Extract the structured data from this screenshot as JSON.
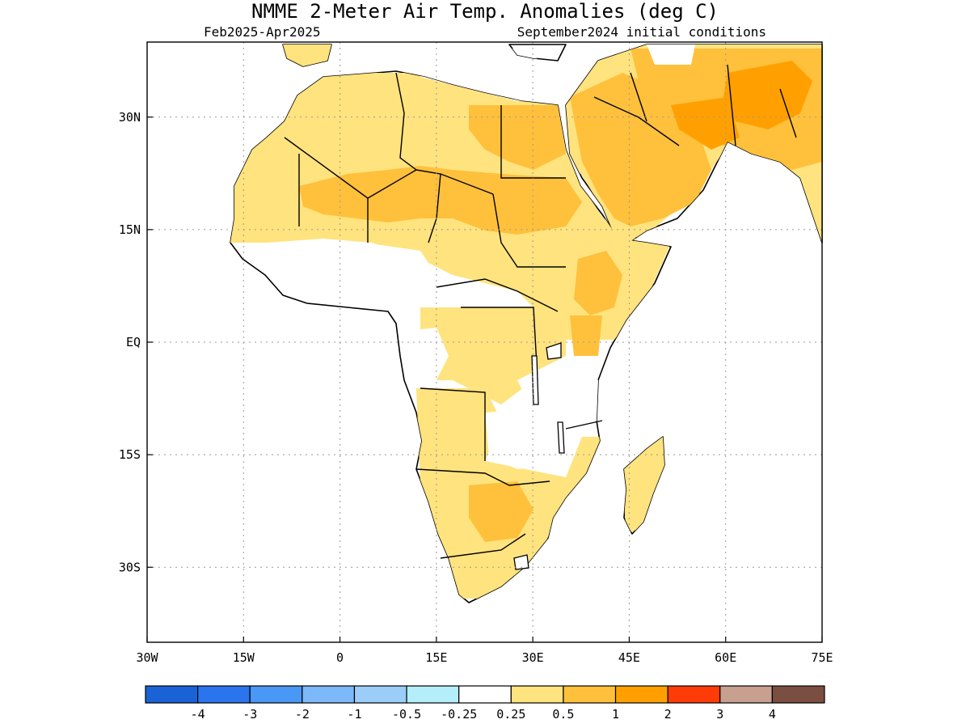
{
  "title": "NMME 2-Meter Air Temp. Anomalies (deg C)",
  "subtitle_left": "Feb2025-Apr2025",
  "subtitle_right": "September2024 initial conditions",
  "map": {
    "lon_range": [
      -30,
      75
    ],
    "lat_range": [
      -40,
      40
    ],
    "x_ticks": [
      {
        "lon": -30,
        "label": "30W"
      },
      {
        "lon": -15,
        "label": "15W"
      },
      {
        "lon": 0,
        "label": "0"
      },
      {
        "lon": 15,
        "label": "15E"
      },
      {
        "lon": 30,
        "label": "30E"
      },
      {
        "lon": 45,
        "label": "45E"
      },
      {
        "lon": 60,
        "label": "60E"
      },
      {
        "lon": 75,
        "label": "75E"
      }
    ],
    "y_ticks": [
      {
        "lat": 30,
        "label": "30N"
      },
      {
        "lat": 15,
        "label": "15N"
      },
      {
        "lat": 0,
        "label": "EQ"
      },
      {
        "lat": -15,
        "label": "15S"
      },
      {
        "lat": -30,
        "label": "30S"
      }
    ],
    "grid": true
  },
  "colorbar": {
    "colors": [
      "#1a63d6",
      "#2a74ee",
      "#4a98f5",
      "#7db8f9",
      "#9ccdf9",
      "#b4eefb",
      "#ffffff",
      "#ffe37e",
      "#ffc03c",
      "#ffa000",
      "#ff3c08",
      "#c8a090",
      "#7a4e40"
    ],
    "labels": [
      "-4",
      "-3",
      "-2",
      "-1",
      "-0.5",
      "-0.25",
      "0.25",
      "0.5",
      "1",
      "2",
      "3",
      "4"
    ]
  },
  "anomaly_colors": {
    "light": "#ffe37e",
    "medium": "#ffc03c",
    "strong": "#ffa000"
  }
}
